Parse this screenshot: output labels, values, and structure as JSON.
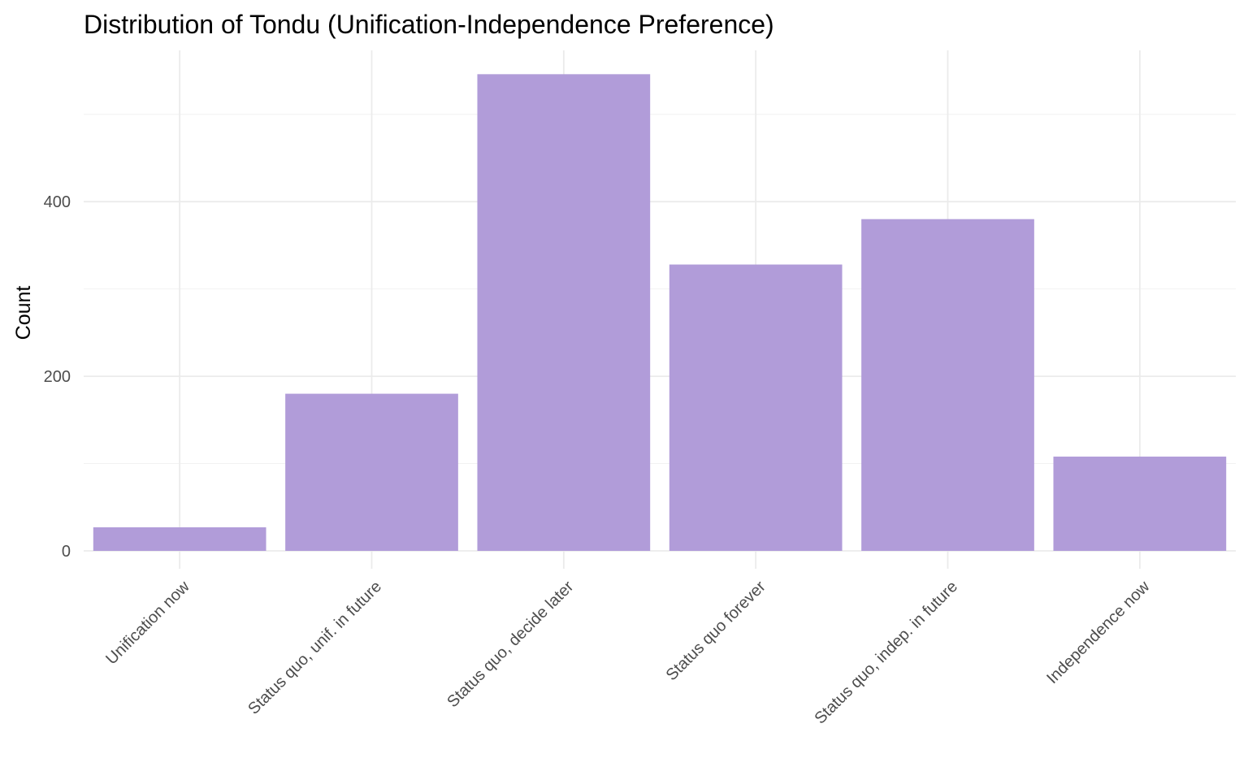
{
  "chart_data": {
    "type": "bar",
    "title": "Distribution of Tondu (Unification-Independence Preference)",
    "xlabel": "",
    "ylabel": "Count",
    "categories": [
      "Unification now",
      "Status quo, unif. in future",
      "Status quo, decide later",
      "Status quo forever",
      "Status quo, indep. in future",
      "Independence now"
    ],
    "values": [
      27,
      180,
      546,
      328,
      380,
      108
    ],
    "ylim": [
      0,
      546
    ],
    "y_ticks": [
      0,
      200,
      400
    ],
    "y_minor_ticks": [
      100,
      300,
      500
    ],
    "grid": true,
    "legend": "none",
    "bar_color": "#b19cd9"
  }
}
